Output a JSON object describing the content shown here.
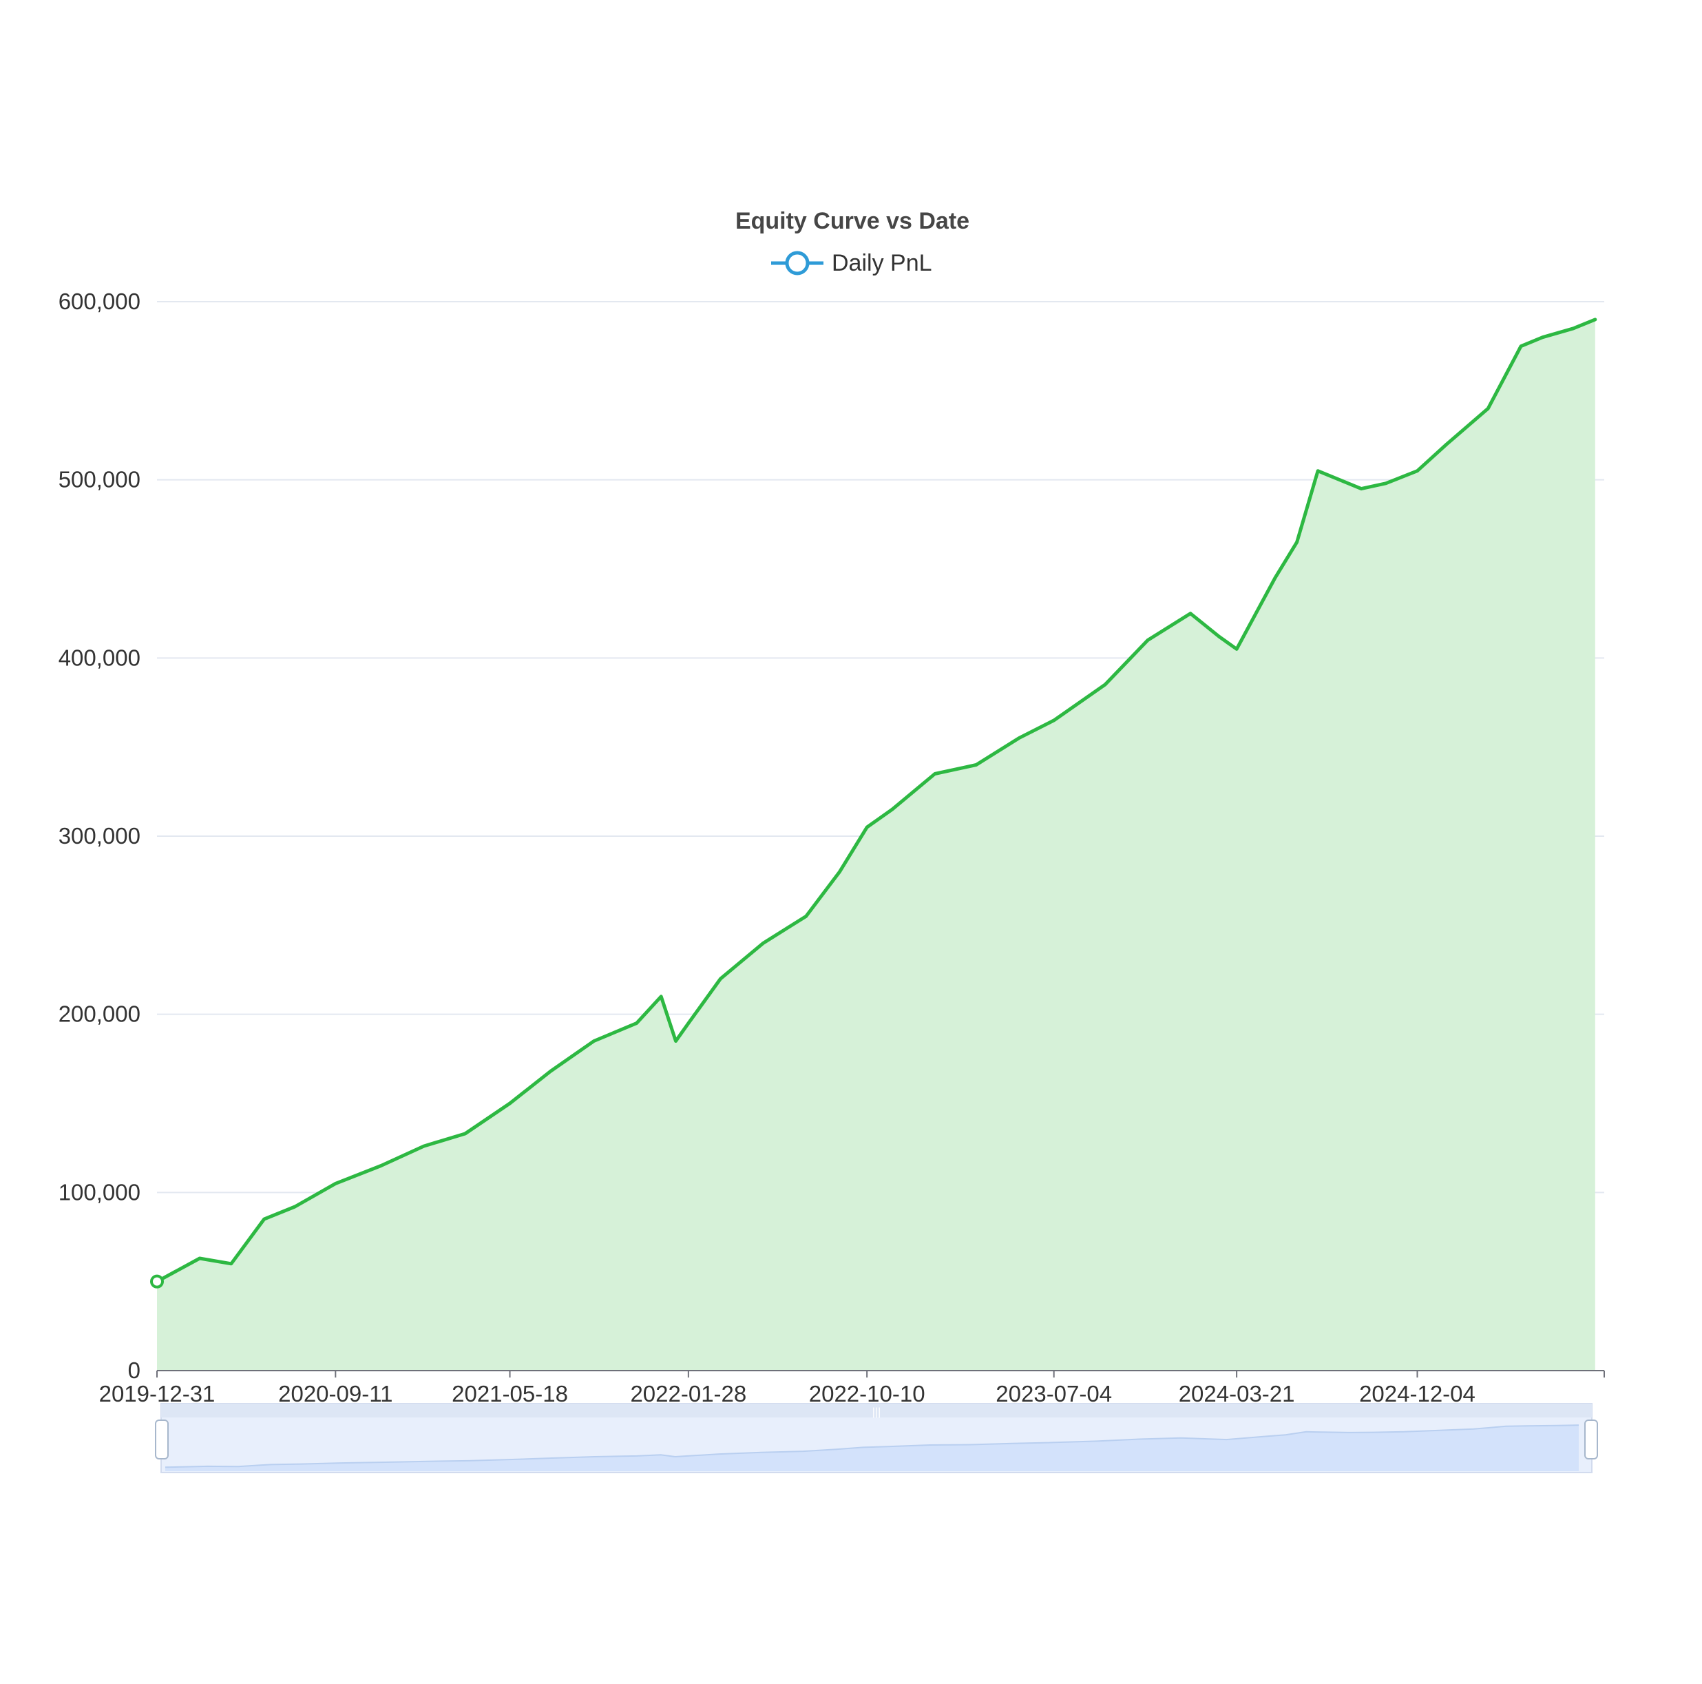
{
  "chart_data": {
    "type": "area",
    "title": "Equity Curve vs Date",
    "xlabel": "",
    "ylabel": "",
    "legend": {
      "position": "top-center",
      "entries": [
        "Daily PnL"
      ]
    },
    "series": [
      {
        "name": "Daily PnL",
        "line_color": "#2db842",
        "area_color": "#d6f1d8",
        "x": [
          "2019-12-31",
          "2020-03-01",
          "2020-04-15",
          "2020-06-01",
          "2020-07-15",
          "2020-09-11",
          "2020-11-15",
          "2021-01-15",
          "2021-03-15",
          "2021-05-18",
          "2021-07-15",
          "2021-09-15",
          "2021-11-15",
          "2021-12-20",
          "2022-01-10",
          "2022-01-28",
          "2022-03-15",
          "2022-05-15",
          "2022-07-15",
          "2022-09-01",
          "2022-10-10",
          "2022-11-15",
          "2023-01-15",
          "2023-03-15",
          "2023-05-15",
          "2023-07-04",
          "2023-09-15",
          "2023-11-15",
          "2024-01-15",
          "2024-02-25",
          "2024-03-21",
          "2024-05-15",
          "2024-06-15",
          "2024-07-15",
          "2024-09-15",
          "2024-10-20",
          "2024-12-04",
          "2025-01-15",
          "2025-03-15",
          "2025-05-01",
          "2025-06-01",
          "2025-07-15",
          "2025-08-15"
        ],
        "values": [
          50000,
          63000,
          60000,
          85000,
          92000,
          105000,
          115000,
          126000,
          133000,
          150000,
          168000,
          185000,
          195000,
          210000,
          185000,
          195000,
          220000,
          240000,
          255000,
          280000,
          305000,
          315000,
          335000,
          340000,
          355000,
          365000,
          385000,
          410000,
          425000,
          412000,
          405000,
          445000,
          465000,
          505000,
          495000,
          498000,
          505000,
          520000,
          540000,
          575000,
          580000,
          585000,
          590000
        ]
      }
    ],
    "ylim": [
      0,
      600000
    ],
    "yticks": [
      "0",
      "100,000",
      "200,000",
      "300,000",
      "400,000",
      "500,000",
      "600,000"
    ],
    "xticks": [
      "2019-12-31",
      "2020-09-11",
      "2021-05-18",
      "2022-01-28",
      "2022-10-10",
      "2023-07-04",
      "2024-03-21",
      "2024-12-04"
    ],
    "xlim": [
      "2019-12-31",
      "2025-08-28"
    ],
    "grid": true,
    "data_zoom": {
      "visible": true,
      "start": 0,
      "end": 100
    }
  }
}
